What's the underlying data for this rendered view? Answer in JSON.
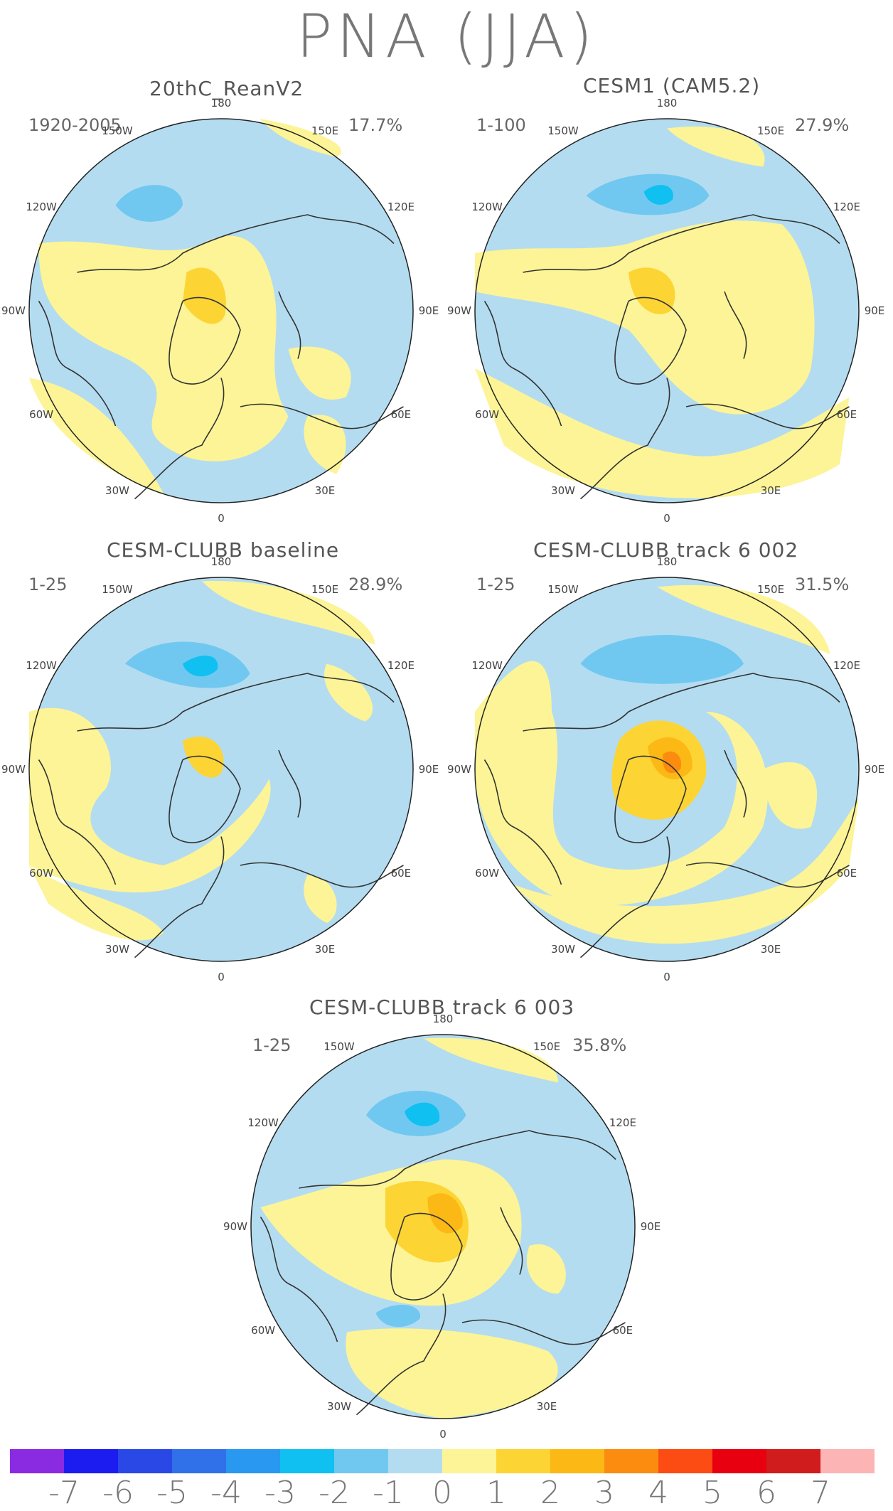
{
  "title": "PNA (JJA)",
  "longitude_labels": [
    "180",
    "150E",
    "120E",
    "90E",
    "60E",
    "30E",
    "0",
    "30W",
    "60W",
    "90W",
    "120W",
    "150W"
  ],
  "panels": [
    {
      "title": "20thC_ReanV2",
      "years": "1920-2005",
      "variance": "17.7%"
    },
    {
      "title": "CESM1 (CAM5.2)",
      "years": "1-100",
      "variance": "27.9%"
    },
    {
      "title": "CESM-CLUBB baseline",
      "years": "1-25",
      "variance": "28.9%"
    },
    {
      "title": "CESM-CLUBB track 6 002",
      "years": "1-25",
      "variance": "31.5%"
    },
    {
      "title": "CESM-CLUBB track 6 003",
      "years": "1-25",
      "variance": "35.8%"
    }
  ],
  "colorbar": {
    "labels": [
      "-7",
      "-6",
      "-5",
      "-4",
      "-3",
      "-2",
      "-1",
      "0",
      "1",
      "2",
      "3",
      "4",
      "5",
      "6",
      "7"
    ],
    "colors": [
      "#8a2be2",
      "#1c1cf0",
      "#2a48e6",
      "#3070e8",
      "#2898f0",
      "#10c0f0",
      "#70c8f0",
      "#b4dcf0",
      "#fcf496",
      "#fcd434",
      "#fcb814",
      "#fc8c10",
      "#fc4c14",
      "#e80010",
      "#d01c1c",
      "#fcb4b4"
    ]
  },
  "colors": {
    "neg2": "#70c8f0",
    "neg1": "#b4dcf0",
    "pos1": "#fcf496",
    "pos2": "#fcd434",
    "pos3": "#fcb814",
    "pos4": "#fc8c10",
    "neg3": "#10c0f0"
  }
}
